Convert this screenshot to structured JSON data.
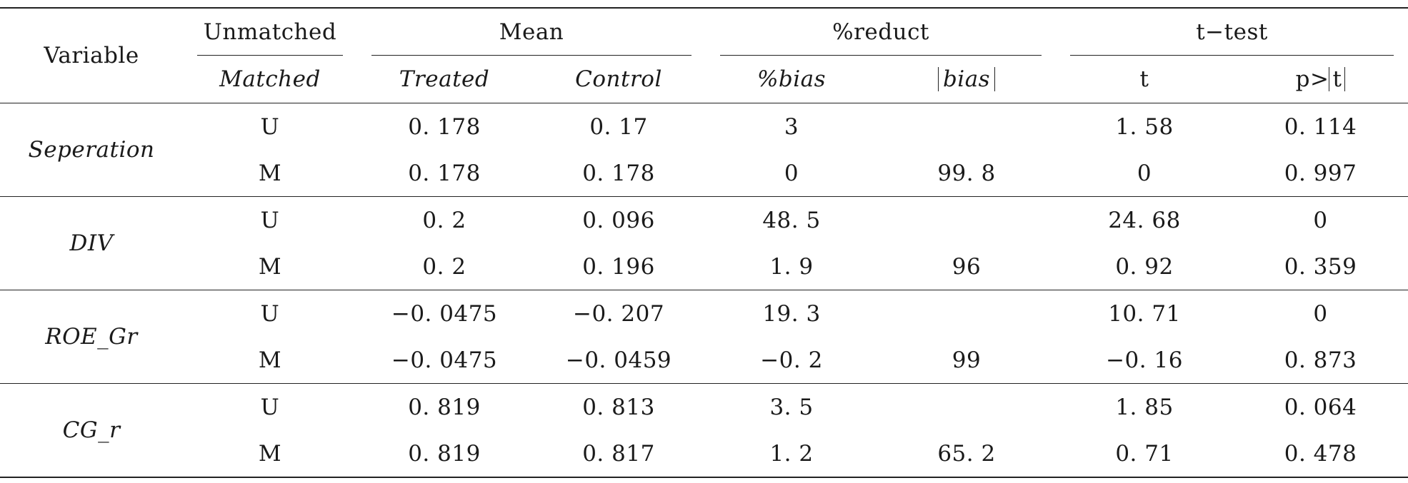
{
  "header": {
    "variable": "Variable",
    "unmatched": "Unmatched",
    "matched": "Matched",
    "mean": "Mean",
    "treated": "Treated",
    "control": "Control",
    "reduct": "%reduct",
    "pct_bias": "%bias",
    "abs_bias": "bias",
    "ttest": "t−test",
    "t": "t",
    "p_prefix": "p>",
    "p_t": "t"
  },
  "rows": [
    {
      "variable": "Seperation",
      "u": {
        "type": "U",
        "treated": "0. 178",
        "control": "0. 17",
        "bias": "3",
        "absbias": "",
        "t": "1. 58",
        "p": "0. 114"
      },
      "m": {
        "type": "M",
        "treated": "0. 178",
        "control": "0. 178",
        "bias": "0",
        "absbias": "99. 8",
        "t": "0",
        "p": "0. 997"
      }
    },
    {
      "variable": "DIV",
      "u": {
        "type": "U",
        "treated": "0. 2",
        "control": "0. 096",
        "bias": "48. 5",
        "absbias": "",
        "t": "24. 68",
        "p": "0"
      },
      "m": {
        "type": "M",
        "treated": "0. 2",
        "control": "0. 196",
        "bias": "1. 9",
        "absbias": "96",
        "t": "0. 92",
        "p": "0. 359"
      }
    },
    {
      "variable": "ROE_Gr",
      "u": {
        "type": "U",
        "treated": "−0. 0475",
        "control": "−0. 207",
        "bias": "19. 3",
        "absbias": "",
        "t": "10. 71",
        "p": "0"
      },
      "m": {
        "type": "M",
        "treated": "−0. 0475",
        "control": "−0. 0459",
        "bias": "−0. 2",
        "absbias": "99",
        "t": "−0. 16",
        "p": "0. 873"
      }
    },
    {
      "variable": "CG_r",
      "u": {
        "type": "U",
        "treated": "0. 819",
        "control": "0. 813",
        "bias": "3. 5",
        "absbias": "",
        "t": "1. 85",
        "p": "0. 064"
      },
      "m": {
        "type": "M",
        "treated": "0. 819",
        "control": "0. 817",
        "bias": "1. 2",
        "absbias": "65. 2",
        "t": "0. 71",
        "p": "0. 478"
      }
    }
  ]
}
